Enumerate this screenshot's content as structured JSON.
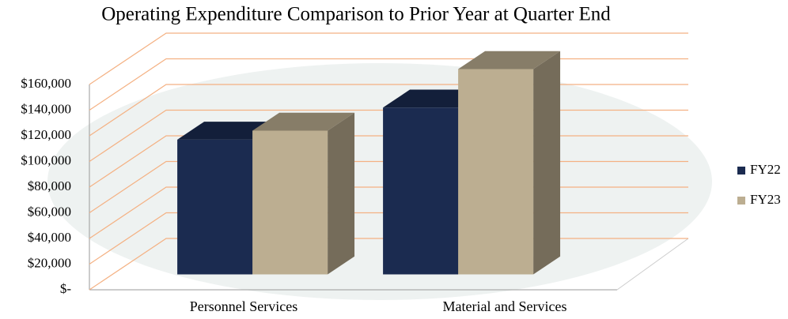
{
  "chart_data": {
    "type": "bar3d",
    "title": "Operating Expenditure Comparison to Prior Year at Quarter End",
    "categories": [
      "Personnel Services",
      "Material and Services"
    ],
    "series": [
      {
        "name": "FY22",
        "color": "#1b2b50",
        "values": [
          105000,
          130000
        ]
      },
      {
        "name": "FY23",
        "color": "#bcae91",
        "values": [
          112000,
          160000
        ]
      }
    ],
    "ylim": [
      0,
      160000
    ],
    "yticks": [
      {
        "value": 0,
        "label": "$-"
      },
      {
        "value": 20000,
        "label": "$20,000"
      },
      {
        "value": 40000,
        "label": "$40,000"
      },
      {
        "value": 60000,
        "label": "$60,000"
      },
      {
        "value": 80000,
        "label": "$80,000"
      },
      {
        "value": 100000,
        "label": "$100,000"
      },
      {
        "value": 120000,
        "label": "$120,000"
      },
      {
        "value": 140000,
        "label": "$140,000"
      },
      {
        "value": 160000,
        "label": "$160,000"
      }
    ],
    "grid": true,
    "legend": "right"
  }
}
